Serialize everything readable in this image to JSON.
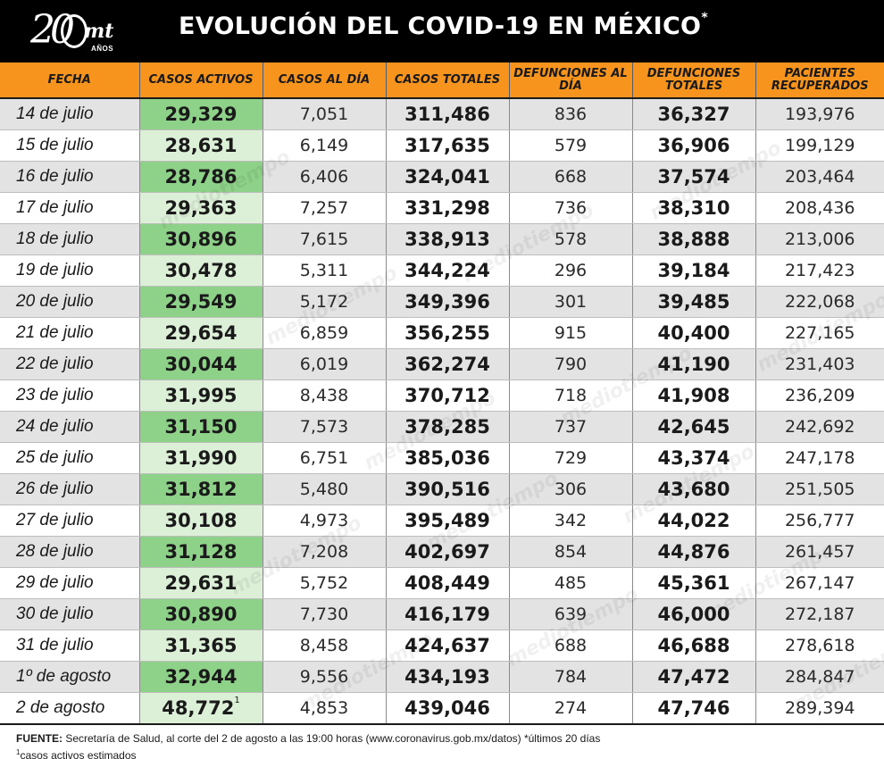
{
  "header": {
    "logo_number": "20",
    "logo_brand": "mt",
    "logo_years": "AÑOS",
    "title": "EVOLUCIÓN DEL COVID-19 EN MÉXICO",
    "title_mark": "*"
  },
  "columns": [
    "FECHA",
    "CASOS ACTIVOS",
    "CASOS AL DÍA",
    "CASOS TOTALES",
    "DEFUNCIONES AL DÍA",
    "DEFUNCIONES TOTALES",
    "PACIENTES RECUPERADOS"
  ],
  "rows": [
    {
      "fecha": "14 de julio",
      "activos": "29,329",
      "al_dia": "7,051",
      "totales": "311,486",
      "def_dia": "836",
      "def_totales": "36,327",
      "recuperados": "193,976"
    },
    {
      "fecha": "15 de julio",
      "activos": "28,631",
      "al_dia": "6,149",
      "totales": "317,635",
      "def_dia": "579",
      "def_totales": "36,906",
      "recuperados": "199,129"
    },
    {
      "fecha": "16 de julio",
      "activos": "28,786",
      "al_dia": "6,406",
      "totales": "324,041",
      "def_dia": "668",
      "def_totales": "37,574",
      "recuperados": "203,464"
    },
    {
      "fecha": "17 de julio",
      "activos": "29,363",
      "al_dia": "7,257",
      "totales": "331,298",
      "def_dia": "736",
      "def_totales": "38,310",
      "recuperados": "208,436"
    },
    {
      "fecha": "18 de julio",
      "activos": "30,896",
      "al_dia": "7,615",
      "totales": "338,913",
      "def_dia": "578",
      "def_totales": "38,888",
      "recuperados": "213,006"
    },
    {
      "fecha": "19 de julio",
      "activos": "30,478",
      "al_dia": "5,311",
      "totales": "344,224",
      "def_dia": "296",
      "def_totales": "39,184",
      "recuperados": "217,423"
    },
    {
      "fecha": "20 de julio",
      "activos": "29,549",
      "al_dia": "5,172",
      "totales": "349,396",
      "def_dia": "301",
      "def_totales": "39,485",
      "recuperados": "222,068"
    },
    {
      "fecha": "21 de julio",
      "activos": "29,654",
      "al_dia": "6,859",
      "totales": "356,255",
      "def_dia": "915",
      "def_totales": "40,400",
      "recuperados": "227,165"
    },
    {
      "fecha": "22 de julio",
      "activos": "30,044",
      "al_dia": "6,019",
      "totales": "362,274",
      "def_dia": "790",
      "def_totales": "41,190",
      "recuperados": "231,403"
    },
    {
      "fecha": "23 de julio",
      "activos": "31,995",
      "al_dia": "8,438",
      "totales": "370,712",
      "def_dia": "718",
      "def_totales": "41,908",
      "recuperados": "236,209"
    },
    {
      "fecha": "24 de julio",
      "activos": "31,150",
      "al_dia": "7,573",
      "totales": "378,285",
      "def_dia": "737",
      "def_totales": "42,645",
      "recuperados": "242,692"
    },
    {
      "fecha": "25 de julio",
      "activos": "31,990",
      "al_dia": "6,751",
      "totales": "385,036",
      "def_dia": "729",
      "def_totales": "43,374",
      "recuperados": "247,178"
    },
    {
      "fecha": "26 de julio",
      "activos": "31,812",
      "al_dia": "5,480",
      "totales": "390,516",
      "def_dia": "306",
      "def_totales": "43,680",
      "recuperados": "251,505"
    },
    {
      "fecha": "27 de julio",
      "activos": "30,108",
      "al_dia": "4,973",
      "totales": "395,489",
      "def_dia": "342",
      "def_totales": "44,022",
      "recuperados": "256,777"
    },
    {
      "fecha": "28 de julio",
      "activos": "31,128",
      "al_dia": "7,208",
      "totales": "402,697",
      "def_dia": "854",
      "def_totales": "44,876",
      "recuperados": "261,457"
    },
    {
      "fecha": "29 de julio",
      "activos": "29,631",
      "al_dia": "5,752",
      "totales": "408,449",
      "def_dia": "485",
      "def_totales": "45,361",
      "recuperados": "267,147"
    },
    {
      "fecha": "30 de julio",
      "activos": "30,890",
      "al_dia": "7,730",
      "totales": "416,179",
      "def_dia": "639",
      "def_totales": "46,000",
      "recuperados": "272,187"
    },
    {
      "fecha": "31 de julio",
      "activos": "31,365",
      "al_dia": "8,458",
      "totales": "424,637",
      "def_dia": "688",
      "def_totales": "46,688",
      "recuperados": "278,618"
    },
    {
      "fecha": "1º de agosto",
      "activos": "32,944",
      "al_dia": "9,556",
      "totales": "434,193",
      "def_dia": "784",
      "def_totales": "47,472",
      "recuperados": "284,847"
    },
    {
      "fecha": "2 de agosto",
      "activos": "48,772",
      "activos_mark": "1",
      "al_dia": "4,853",
      "totales": "439,046",
      "def_dia": "274",
      "def_totales": "47,746",
      "recuperados": "289,394"
    }
  ],
  "watermark": "mediotiempo",
  "footer": {
    "source_label": "FUENTE:",
    "source_text": " Secretaría de Salud, al corte del 2 de agosto a las 19:00 horas (www.coronavirus.gob.mx/datos) *últimos 20 días",
    "note_mark": "1",
    "note_text": "casos activos estimados"
  },
  "colors": {
    "header_bg": "#000000",
    "column_header_bg": "#f7941d",
    "active_cases_dark": "#8ed188",
    "active_cases_light": "#dcefd7",
    "row_stripe": "#e3e3e3"
  }
}
